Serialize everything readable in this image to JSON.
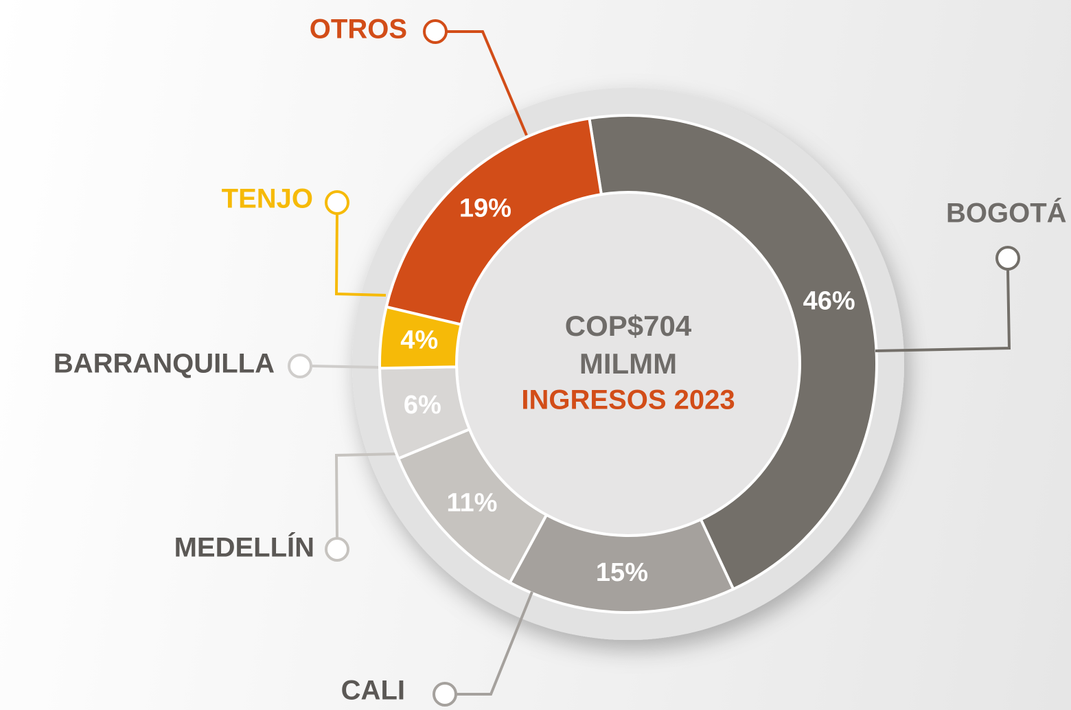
{
  "chart_data": {
    "type": "donut",
    "center_text": [
      "COP$704",
      "MILMM",
      "INGRESOS 2023"
    ],
    "categories": [
      "BOGOTÁ",
      "CALI",
      "MEDELLÍN",
      "BARRANQUILLA",
      "TENJO",
      "OTROS"
    ],
    "values": [
      46,
      15,
      11,
      6,
      4,
      19
    ],
    "value_labels": [
      "46%",
      "15%",
      "11%",
      "6%",
      "4%",
      "19%"
    ],
    "colors": [
      "#736f69",
      "#a5a19d",
      "#c6c3bf",
      "#d8d6d4",
      "#f6ba08",
      "#d24d18"
    ],
    "label_colors": [
      "#6f6c69",
      "#5b5855",
      "#5b5855",
      "#5b5855",
      "#f6ba08",
      "#d24d18"
    ]
  }
}
